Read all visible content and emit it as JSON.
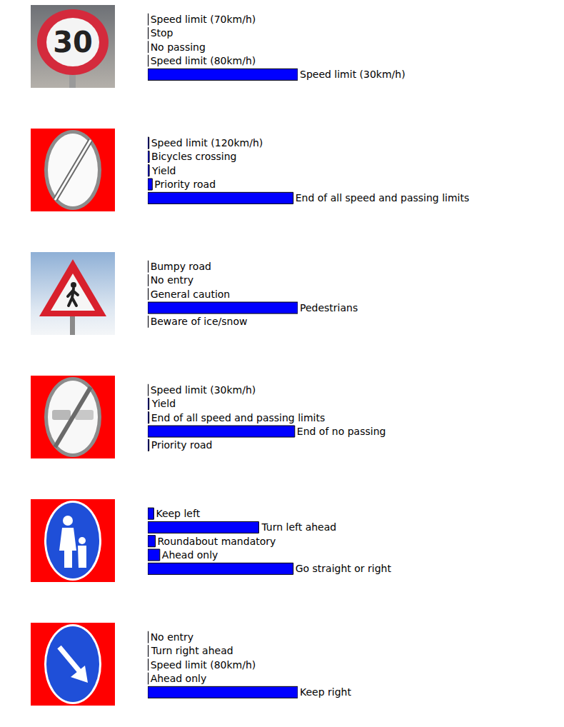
{
  "chart_data": [
    {
      "type": "bar",
      "orientation": "horizontal",
      "color": "#0000ff",
      "xlim": [
        0,
        1
      ],
      "tick_labels": false,
      "annotations": [
        "30"
      ],
      "categories": [
        "Speed limit (70km/h)",
        "Stop",
        "No passing",
        "Speed limit (80km/h)",
        "Speed limit (30km/h)"
      ],
      "values": [
        0.003,
        0.003,
        0.003,
        0.003,
        1.0
      ]
    },
    {
      "type": "bar",
      "orientation": "horizontal",
      "color": "#0000ff",
      "xlim": [
        0,
        1
      ],
      "tick_labels": false,
      "categories": [
        "Speed limit (120km/h)",
        "Bicycles crossing",
        "Yield",
        "Priority road",
        "End of all speed and passing limits"
      ],
      "values": [
        0.008,
        0.01,
        0.01,
        0.03,
        0.97
      ]
    },
    {
      "type": "bar",
      "orientation": "horizontal",
      "color": "#0000ff",
      "xlim": [
        0,
        1
      ],
      "tick_labels": false,
      "categories": [
        "Bumpy road",
        "No entry",
        "General caution",
        "Pedestrians",
        "Beware of ice/snow"
      ],
      "values": [
        0.003,
        0.003,
        0.003,
        1.0,
        0.003
      ]
    },
    {
      "type": "bar",
      "orientation": "horizontal",
      "color": "#0000ff",
      "xlim": [
        0,
        1
      ],
      "tick_labels": false,
      "categories": [
        "Speed limit (30km/h)",
        "Yield",
        "End of all speed and passing limits",
        "End of no passing",
        "Priority road"
      ],
      "values": [
        0.003,
        0.008,
        0.008,
        0.98,
        0.008
      ]
    },
    {
      "type": "bar",
      "orientation": "horizontal",
      "color": "#0000ff",
      "xlim": [
        0,
        1
      ],
      "tick_labels": false,
      "categories": [
        "Keep left",
        "Turn left ahead",
        "Roundabout mandatory",
        "Ahead only",
        "Go straight or right"
      ],
      "values": [
        0.04,
        0.74,
        0.05,
        0.08,
        0.97
      ]
    },
    {
      "type": "bar",
      "orientation": "horizontal",
      "color": "#0000ff",
      "xlim": [
        0,
        1
      ],
      "tick_labels": false,
      "categories": [
        "No entry",
        "Turn right ahead",
        "Speed limit (80km/h)",
        "Ahead only",
        "Keep right"
      ],
      "values": [
        0.003,
        0.003,
        0.003,
        0.003,
        1.0
      ]
    }
  ]
}
